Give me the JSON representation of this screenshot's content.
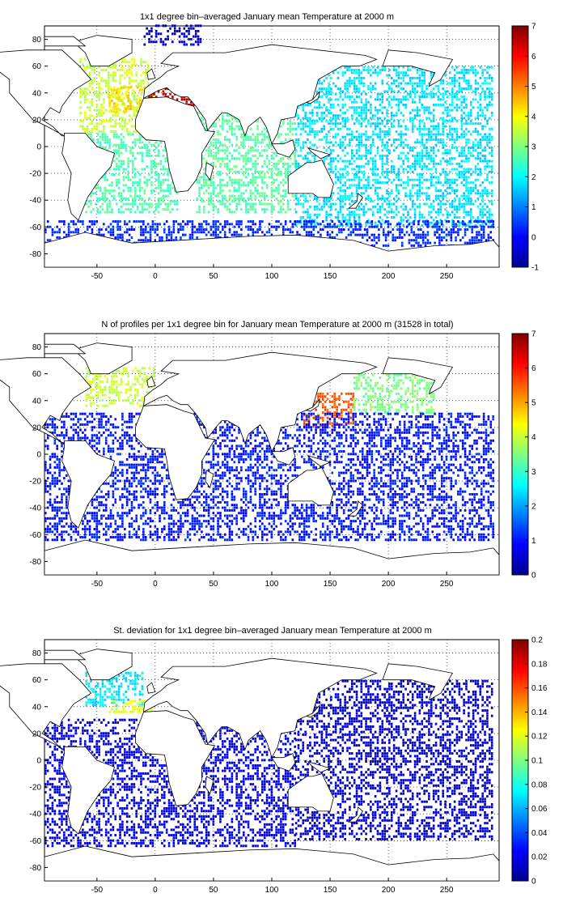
{
  "chart_data": [
    {
      "type": "heatmap",
      "title": "1x1 degree bin–averaged January mean Temperature at 2000 m",
      "xlim": [
        -95,
        295
      ],
      "ylim": [
        -90,
        90
      ],
      "x_ticks": [
        -50,
        0,
        50,
        100,
        150,
        200,
        250
      ],
      "y_ticks": [
        80,
        60,
        40,
        20,
        0,
        -20,
        -40,
        -60,
        -80
      ],
      "grid": true,
      "colormap": "jet",
      "colorbar": {
        "range": [
          -1,
          7
        ],
        "ticks": [
          7,
          6,
          5,
          4,
          3,
          2,
          1,
          0,
          -1
        ]
      },
      "regions": [
        {
          "lon": [
            -65,
            -5
          ],
          "lat": [
            10,
            65
          ],
          "value": 3.6
        },
        {
          "lon": [
            -40,
            0
          ],
          "lat": [
            25,
            45
          ],
          "value": 4.3
        },
        {
          "lon": [
            -10,
            40
          ],
          "lat": [
            30,
            45
          ],
          "value": 6.5
        },
        {
          "lon": [
            -10,
            40
          ],
          "lat": [
            75,
            90
          ],
          "value": -0.5
        },
        {
          "lon": [
            -60,
            20
          ],
          "lat": [
            -50,
            10
          ],
          "value": 2.6
        },
        {
          "lon": [
            35,
            120
          ],
          "lat": [
            -50,
            25
          ],
          "value": 2.7
        },
        {
          "lon": [
            120,
            290
          ],
          "lat": [
            -60,
            60
          ],
          "value": 1.8
        },
        {
          "lon": [
            -95,
            290
          ],
          "lat": [
            -75,
            -55
          ],
          "value": 0.3
        }
      ]
    },
    {
      "type": "heatmap",
      "title": "N of profiles per 1x1 degree bin for January mean Temperature at 2000 m (31528 in total)",
      "xlim": [
        -95,
        295
      ],
      "ylim": [
        -90,
        90
      ],
      "x_ticks": [
        -50,
        0,
        50,
        100,
        150,
        200,
        250
      ],
      "y_ticks": [
        80,
        60,
        40,
        20,
        0,
        -20,
        -40,
        -60,
        -80
      ],
      "grid": true,
      "colormap": "jet",
      "colorbar": {
        "range": [
          0,
          7
        ],
        "ticks": [
          7,
          6,
          5,
          4,
          3,
          2,
          1,
          0
        ]
      },
      "regions": [
        {
          "lon": [
            -60,
            0
          ],
          "lat": [
            35,
            65
          ],
          "value": 4.0
        },
        {
          "lon": [
            125,
            170
          ],
          "lat": [
            20,
            45
          ],
          "value": 5.5
        },
        {
          "lon": [
            170,
            240
          ],
          "lat": [
            30,
            60
          ],
          "value": 3.5
        },
        {
          "lon": [
            -95,
            290
          ],
          "lat": [
            -65,
            30
          ],
          "value": 1.0
        }
      ]
    },
    {
      "type": "heatmap",
      "title": "St. deviation for 1x1 degree bin–averaged January mean Temperature at 2000 m",
      "xlim": [
        -95,
        295
      ],
      "ylim": [
        -90,
        90
      ],
      "x_ticks": [
        -50,
        0,
        50,
        100,
        150,
        200,
        250
      ],
      "y_ticks": [
        80,
        60,
        40,
        20,
        0,
        -20,
        -40,
        -60,
        -80
      ],
      "grid": true,
      "colormap": "jet",
      "colorbar": {
        "range": [
          0,
          0.2
        ],
        "ticks": [
          0.2,
          0.18,
          0.16,
          0.14,
          0.12,
          0.1,
          0.08,
          0.06,
          0.04,
          0.02,
          0
        ]
      },
      "regions": [
        {
          "lon": [
            -60,
            -10
          ],
          "lat": [
            40,
            65
          ],
          "value": 0.07
        },
        {
          "lon": [
            -40,
            0
          ],
          "lat": [
            35,
            45
          ],
          "value": 0.12
        },
        {
          "lon": [
            120,
            290
          ],
          "lat": [
            -60,
            60
          ],
          "value": 0.015
        },
        {
          "lon": [
            -95,
            120
          ],
          "lat": [
            -65,
            30
          ],
          "value": 0.02
        }
      ]
    }
  ]
}
